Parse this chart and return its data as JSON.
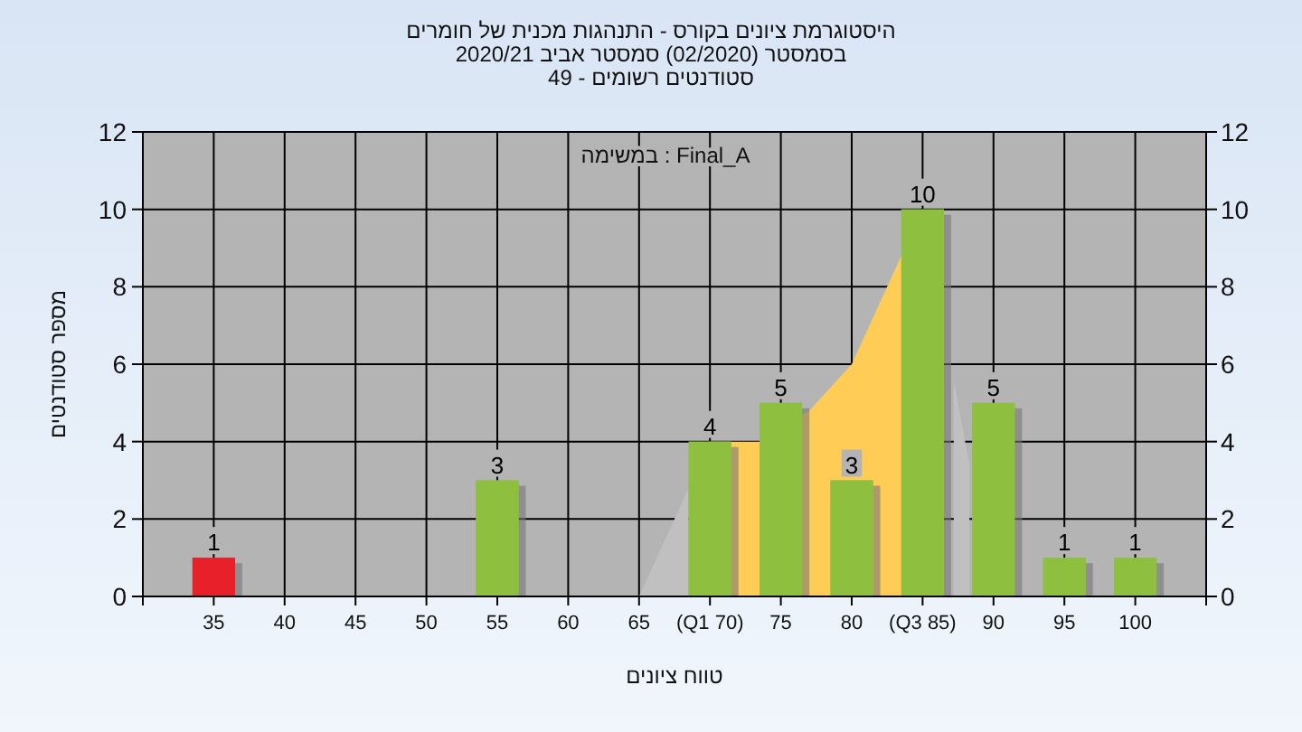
{
  "chart_data": {
    "type": "bar",
    "title": "היסטוגרמת ציונים בקורס - התנהגות מכנית של חומרים",
    "subtitle": "בסמסטר (02/2020) סמסטר אביב 2020/21\nסטודנטים רשומים - 49",
    "xlabel": "טווח ציונים",
    "ylabel": "מספר סטודנטים",
    "annotations": [
      "במשימה : Final_A"
    ],
    "xlim": [
      30,
      105
    ],
    "xticks": [
      35,
      40,
      45,
      50,
      55,
      60,
      65,
      {
        "value": 70,
        "label": "(Q1 70)"
      },
      75,
      80,
      {
        "value": 85,
        "label": "(Q3 85)"
      },
      90,
      95,
      100
    ],
    "ylim": [
      0,
      12
    ],
    "yticks": [
      0,
      2,
      4,
      6,
      8,
      10,
      12
    ],
    "y2lim": [
      0,
      12
    ],
    "y2ticks": [
      0,
      2,
      4,
      6,
      8,
      10,
      12
    ],
    "grid": true,
    "series": [
      {
        "type": "area",
        "color": "#c0c0c0",
        "x": [
          65,
          68.5
        ],
        "values": [
          0,
          2.8
        ]
      },
      {
        "type": "area",
        "color": "#c0c0c0",
        "x": [
          87.2,
          88.3
        ],
        "values": [
          5.6,
          3.4
        ]
      },
      {
        "type": "area",
        "color": "#ffcc55",
        "x": [
          70,
          73.5,
          77,
          80,
          85
        ],
        "values": [
          4,
          4,
          4.8,
          6,
          10
        ]
      },
      {
        "x": [
          35,
          55,
          70,
          75,
          80,
          85,
          90,
          95,
          100
        ],
        "values": [
          1,
          3,
          4,
          5,
          3,
          10,
          5,
          1,
          1
        ],
        "value_labels": [
          "1",
          "3",
          "4",
          "5",
          "3",
          "10",
          "5",
          "1",
          "1"
        ],
        "colors": [
          "#e8202a",
          "#8fbf3f",
          "#8fbf3f",
          "#8fbf3f",
          "#8fbf3f",
          "#8fbf3f",
          "#8fbf3f",
          "#8fbf3f",
          "#8fbf3f"
        ]
      }
    ]
  }
}
